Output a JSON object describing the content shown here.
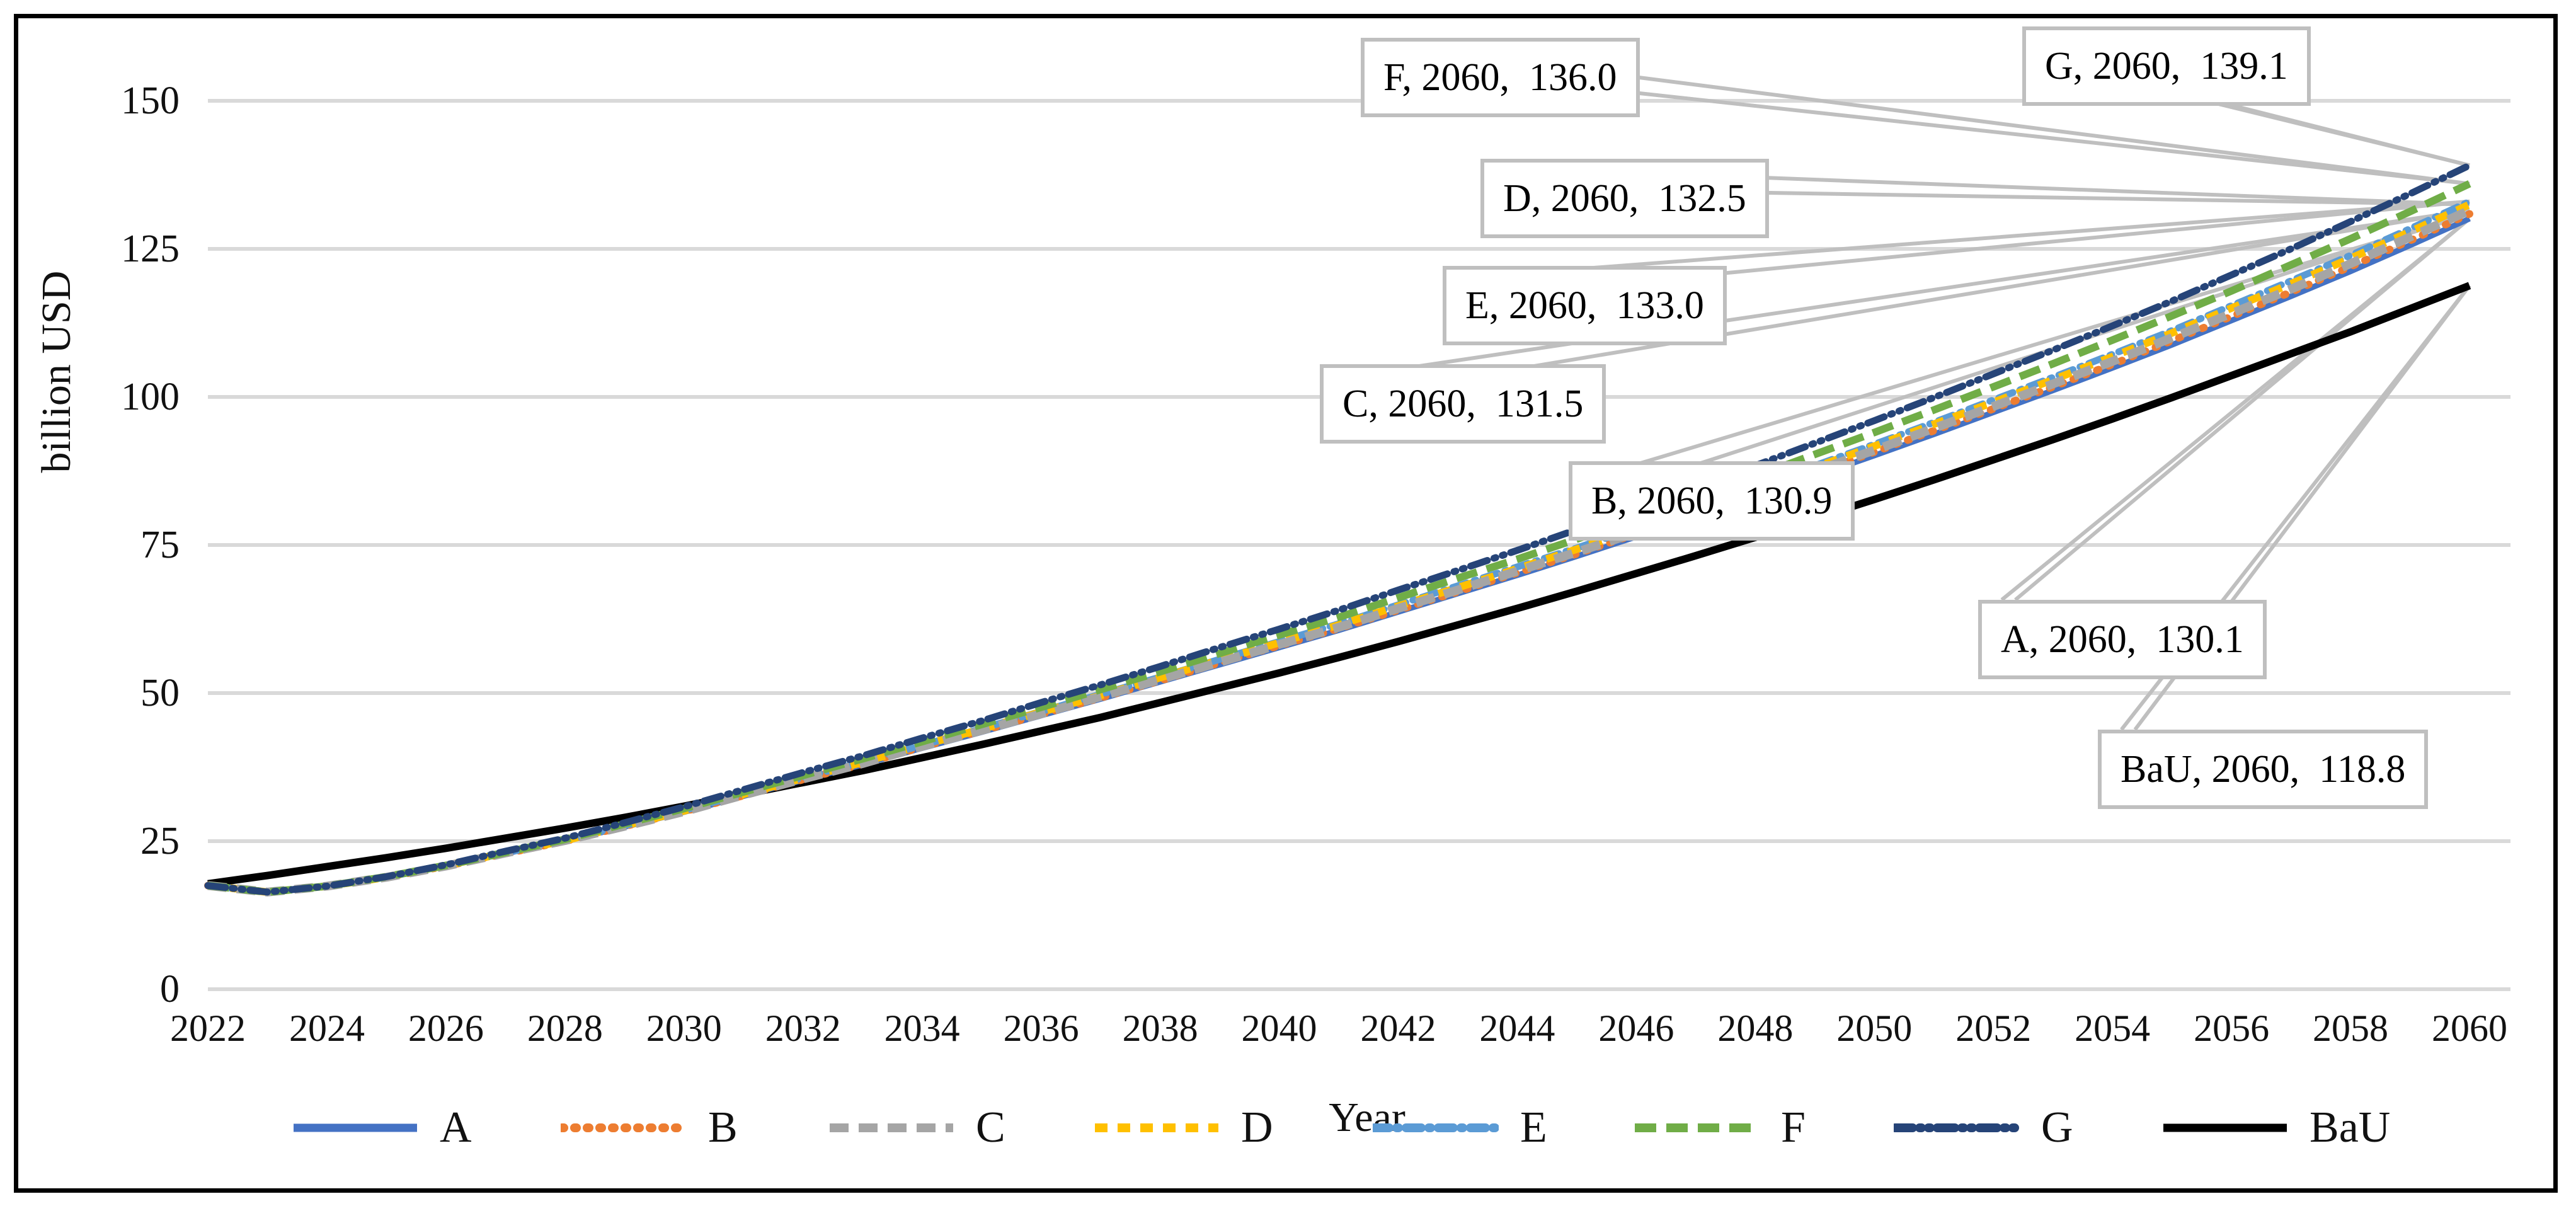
{
  "axes": {
    "y_title": "billion USD",
    "x_title": "Year",
    "y_ticks": [
      "150",
      "125",
      "100",
      "75",
      "50",
      "25",
      "0"
    ],
    "y_tick_values": [
      150,
      125,
      100,
      75,
      50,
      25,
      0
    ],
    "x_ticks": [
      "2022",
      "2024",
      "2026",
      "2028",
      "2030",
      "2032",
      "2034",
      "2036",
      "2038",
      "2040",
      "2042",
      "2044",
      "2046",
      "2048",
      "2050",
      "2052",
      "2054",
      "2056",
      "2058",
      "2060"
    ],
    "x_tick_values": [
      2022,
      2024,
      2026,
      2028,
      2030,
      2032,
      2034,
      2036,
      2038,
      2040,
      2042,
      2044,
      2046,
      2048,
      2050,
      2052,
      2054,
      2056,
      2058,
      2060
    ]
  },
  "colors": {
    "gridline": "#D9D9D9",
    "leader": "#BFBFBF",
    "callout_border": "#BFBFBF",
    "figure_border": "#000000",
    "text": "#111111"
  },
  "legend": [
    {
      "label": "A",
      "color": "#4472C4",
      "dash": "solid"
    },
    {
      "label": "B",
      "color": "#ED7D31",
      "dash": "dot"
    },
    {
      "label": "C",
      "color": "#A5A5A5",
      "dash": "dash"
    },
    {
      "label": "D",
      "color": "#FFC000",
      "dash": "short-dash"
    },
    {
      "label": "E",
      "color": "#5B9BD5",
      "dash": "dash-dot"
    },
    {
      "label": "F",
      "color": "#70AD47",
      "dash": "long-dash"
    },
    {
      "label": "G",
      "color": "#264478",
      "dash": "dash-dot-dot"
    },
    {
      "label": "BaU",
      "color": "#000000",
      "dash": "solid"
    }
  ],
  "callouts": [
    {
      "series": "F",
      "label": "F, 2060,  136.0",
      "year": 2060,
      "value": 136.0
    },
    {
      "series": "G",
      "label": "G, 2060,  139.1",
      "year": 2060,
      "value": 139.1
    },
    {
      "series": "D",
      "label": "D, 2060,  132.5",
      "year": 2060,
      "value": 132.5
    },
    {
      "series": "E",
      "label": "E, 2060,  133.0",
      "year": 2060,
      "value": 133.0
    },
    {
      "series": "C",
      "label": "C, 2060,  131.5",
      "year": 2060,
      "value": 131.5
    },
    {
      "series": "B",
      "label": "B, 2060,  130.9",
      "year": 2060,
      "value": 130.9
    },
    {
      "series": "A",
      "label": "A, 2060,  130.1",
      "year": 2060,
      "value": 130.1
    },
    {
      "series": "BaU",
      "label": "BaU, 2060,  118.8",
      "year": 2060,
      "value": 118.8
    }
  ],
  "chart_data": {
    "type": "line",
    "title": "",
    "xlabel": "Year",
    "ylabel": "billion USD",
    "ylim": [
      0,
      150
    ],
    "xlim": [
      2022,
      2060
    ],
    "grid": "horizontal",
    "legend_position": "bottom",
    "x": [
      2022,
      2023,
      2024,
      2025,
      2026,
      2027,
      2028,
      2029,
      2030,
      2031,
      2032,
      2033,
      2034,
      2035,
      2036,
      2037,
      2038,
      2039,
      2040,
      2041,
      2042,
      2043,
      2044,
      2045,
      2046,
      2047,
      2048,
      2049,
      2050,
      2051,
      2052,
      2053,
      2054,
      2055,
      2056,
      2057,
      2058,
      2059,
      2060
    ],
    "series": [
      {
        "name": "A",
        "color": "#4472C4",
        "dash": "solid",
        "end_value": 130.1,
        "values": [
          17.5,
          16.4,
          17.4,
          18.9,
          20.8,
          22.9,
          25.0,
          27.4,
          29.9,
          32.6,
          35.3,
          37.9,
          40.7,
          43.4,
          46.2,
          49.0,
          51.9,
          54.8,
          57.7,
          60.6,
          63.7,
          66.8,
          69.9,
          73.1,
          76.4,
          79.7,
          83.1,
          86.6,
          90.1,
          93.7,
          97.4,
          101.1,
          104.9,
          108.8,
          112.9,
          117.0,
          121.2,
          125.6,
          130.1
        ]
      },
      {
        "name": "B",
        "color": "#ED7D31",
        "dash": "dot",
        "end_value": 130.9,
        "values": [
          17.5,
          16.4,
          17.4,
          18.9,
          20.8,
          22.9,
          25.0,
          27.5,
          30.0,
          32.7,
          35.4,
          38.0,
          40.9,
          43.6,
          46.4,
          49.2,
          52.1,
          55.1,
          58.0,
          60.9,
          64.0,
          67.1,
          70.3,
          73.5,
          76.9,
          80.2,
          83.6,
          87.1,
          90.7,
          94.3,
          98.0,
          101.7,
          105.5,
          109.5,
          113.6,
          117.7,
          122.0,
          126.4,
          130.9
        ]
      },
      {
        "name": "C",
        "color": "#A5A5A5",
        "dash": "dash",
        "end_value": 131.5,
        "values": [
          17.5,
          16.4,
          17.4,
          18.9,
          20.8,
          23.0,
          25.1,
          27.5,
          30.0,
          32.8,
          35.5,
          38.1,
          41.0,
          43.7,
          46.5,
          49.4,
          52.3,
          55.2,
          58.2,
          61.1,
          64.3,
          67.4,
          70.6,
          73.8,
          77.1,
          80.5,
          83.9,
          87.5,
          91.0,
          94.7,
          98.4,
          102.2,
          106.0,
          110.0,
          114.1,
          118.2,
          122.5,
          127.0,
          131.5
        ]
      },
      {
        "name": "D",
        "color": "#FFC000",
        "dash": "short-dash",
        "end_value": 132.5,
        "values": [
          17.5,
          16.4,
          17.4,
          18.9,
          20.9,
          23.0,
          25.1,
          27.6,
          30.1,
          32.9,
          35.6,
          38.3,
          41.2,
          43.9,
          46.8,
          49.6,
          52.6,
          55.6,
          58.5,
          61.5,
          64.7,
          67.8,
          71.0,
          74.3,
          77.7,
          81.0,
          84.5,
          88.1,
          91.7,
          95.4,
          99.1,
          102.9,
          106.8,
          110.8,
          115.0,
          119.1,
          123.4,
          127.9,
          132.5
        ]
      },
      {
        "name": "E",
        "color": "#5B9BD5",
        "dash": "dash-dot",
        "end_value": 133.0,
        "values": [
          17.5,
          16.4,
          17.4,
          18.9,
          20.9,
          23.0,
          25.2,
          27.6,
          30.2,
          32.9,
          35.7,
          38.4,
          41.2,
          44.0,
          46.9,
          49.8,
          52.7,
          55.7,
          58.7,
          61.7,
          64.9,
          68.1,
          71.3,
          74.5,
          77.9,
          81.3,
          84.8,
          88.4,
          92.0,
          95.7,
          99.5,
          103.3,
          107.2,
          111.2,
          115.4,
          119.6,
          123.9,
          128.4,
          133.0
        ]
      },
      {
        "name": "F",
        "color": "#70AD47",
        "dash": "long-dash",
        "end_value": 136.0,
        "values": [
          17.5,
          16.4,
          17.4,
          19.0,
          20.9,
          23.1,
          25.3,
          27.9,
          30.5,
          33.3,
          36.1,
          38.9,
          41.8,
          44.7,
          47.6,
          50.6,
          53.6,
          56.7,
          59.8,
          62.8,
          66.1,
          69.4,
          72.6,
          76.0,
          79.5,
          83.0,
          86.6,
          90.3,
          94.0,
          97.8,
          101.7,
          105.6,
          109.6,
          113.7,
          117.9,
          122.3,
          126.7,
          131.3,
          136.0
        ]
      },
      {
        "name": "G",
        "color": "#264478",
        "dash": "dash-dot-dot",
        "end_value": 139.1,
        "values": [
          17.5,
          16.4,
          17.4,
          19.0,
          21.0,
          23.3,
          25.5,
          28.1,
          30.8,
          33.7,
          36.6,
          39.4,
          42.4,
          45.3,
          48.4,
          51.4,
          54.5,
          57.7,
          60.8,
          64.0,
          67.4,
          70.7,
          74.1,
          77.6,
          81.1,
          84.7,
          88.4,
          92.2,
          96.0,
          99.9,
          103.9,
          107.9,
          112.0,
          116.2,
          120.6,
          125.0,
          129.6,
          134.3,
          139.1
        ]
      },
      {
        "name": "BaU",
        "color": "#000000",
        "dash": "solid",
        "end_value": 118.8,
        "values": [
          17.8,
          19.2,
          20.7,
          22.2,
          23.8,
          25.5,
          27.2,
          29.0,
          30.9,
          32.9,
          34.9,
          36.9,
          39.1,
          41.3,
          43.6,
          45.9,
          48.4,
          50.9,
          53.4,
          56.0,
          58.7,
          61.5,
          64.3,
          67.2,
          70.2,
          73.2,
          76.3,
          79.5,
          82.7,
          86.0,
          89.4,
          92.8,
          96.3,
          99.9,
          103.6,
          107.3,
          111.0,
          114.9,
          118.8
        ]
      }
    ]
  }
}
